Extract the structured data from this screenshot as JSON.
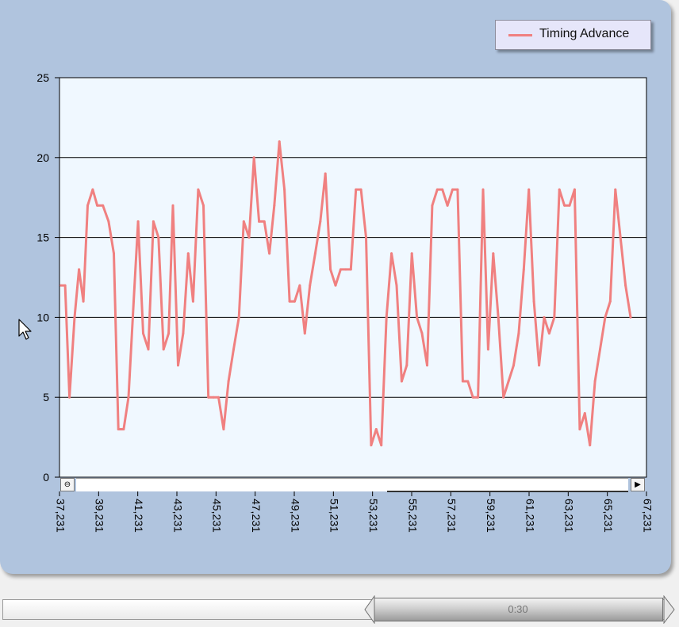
{
  "chart_data": {
    "type": "line",
    "title": "",
    "xlabel": "",
    "ylabel": "",
    "ylim": [
      0,
      25
    ],
    "yticks": [
      "0",
      "5",
      "10",
      "15",
      "20",
      "25"
    ],
    "xticks": [
      "37,231",
      "39,231",
      "41,231",
      "43,231",
      "45,231",
      "47,231",
      "49,231",
      "51,231",
      "53,231",
      "55,231",
      "57,231",
      "59,231",
      "61,231",
      "63,231",
      "65,231",
      "67,231"
    ],
    "grid": true,
    "legend_position": "top-right",
    "series": [
      {
        "name": "Timing Advance",
        "color": "#f08080",
        "points": [
          [
            37.3,
            12
          ],
          [
            37.52,
            12
          ],
          [
            37.74,
            5
          ],
          [
            38.0,
            10
          ],
          [
            38.23,
            13
          ],
          [
            38.45,
            11
          ],
          [
            38.67,
            17
          ],
          [
            38.93,
            18
          ],
          [
            39.16,
            17
          ],
          [
            39.45,
            17
          ],
          [
            39.74,
            16
          ],
          [
            40.01,
            14
          ],
          [
            40.24,
            3
          ],
          [
            40.51,
            3
          ],
          [
            40.76,
            5
          ],
          [
            41.02,
            11
          ],
          [
            41.25,
            16
          ],
          [
            41.51,
            9
          ],
          [
            41.77,
            8
          ],
          [
            42.03,
            16
          ],
          [
            42.29,
            15
          ],
          [
            42.55,
            8
          ],
          [
            42.81,
            9
          ],
          [
            43.03,
            17
          ],
          [
            43.29,
            7
          ],
          [
            43.55,
            9
          ],
          [
            43.81,
            14
          ],
          [
            44.06,
            11
          ],
          [
            44.32,
            18
          ],
          [
            44.59,
            17
          ],
          [
            44.84,
            5
          ],
          [
            45.1,
            5
          ],
          [
            45.36,
            5
          ],
          [
            45.62,
            3
          ],
          [
            45.87,
            6
          ],
          [
            46.13,
            8
          ],
          [
            46.4,
            10
          ],
          [
            46.65,
            16
          ],
          [
            46.92,
            15
          ],
          [
            47.17,
            20
          ],
          [
            47.43,
            16
          ],
          [
            47.7,
            16
          ],
          [
            47.96,
            14
          ],
          [
            48.21,
            17
          ],
          [
            48.47,
            21
          ],
          [
            48.73,
            18
          ],
          [
            48.99,
            11
          ],
          [
            49.25,
            11
          ],
          [
            49.51,
            12
          ],
          [
            49.77,
            9
          ],
          [
            50.03,
            12
          ],
          [
            50.3,
            14
          ],
          [
            50.56,
            16
          ],
          [
            50.82,
            19
          ],
          [
            51.08,
            13
          ],
          [
            51.34,
            12
          ],
          [
            51.6,
            13
          ],
          [
            51.86,
            13
          ],
          [
            52.12,
            13
          ],
          [
            52.38,
            18
          ],
          [
            52.64,
            18
          ],
          [
            52.9,
            15
          ],
          [
            53.16,
            2
          ],
          [
            53.42,
            3
          ],
          [
            53.68,
            2
          ],
          [
            53.94,
            10
          ],
          [
            54.2,
            14
          ],
          [
            54.46,
            12
          ],
          [
            54.72,
            6
          ],
          [
            54.98,
            7
          ],
          [
            55.24,
            14
          ],
          [
            55.5,
            10
          ],
          [
            55.76,
            9
          ],
          [
            56.02,
            7
          ],
          [
            56.28,
            17
          ],
          [
            56.54,
            18
          ],
          [
            56.8,
            18
          ],
          [
            57.06,
            17
          ],
          [
            57.32,
            18
          ],
          [
            57.58,
            18
          ],
          [
            57.84,
            6
          ],
          [
            58.1,
            6
          ],
          [
            58.36,
            5
          ],
          [
            58.62,
            5
          ],
          [
            58.88,
            18
          ],
          [
            59.14,
            8
          ],
          [
            59.4,
            14
          ],
          [
            59.66,
            10
          ],
          [
            59.92,
            5
          ],
          [
            60.18,
            6
          ],
          [
            60.44,
            7
          ],
          [
            60.7,
            9
          ],
          [
            60.96,
            13
          ],
          [
            61.22,
            18
          ],
          [
            61.48,
            11
          ],
          [
            61.74,
            7
          ],
          [
            62.0,
            10
          ],
          [
            62.26,
            9
          ],
          [
            62.52,
            10
          ],
          [
            62.78,
            18
          ],
          [
            63.04,
            17
          ],
          [
            63.3,
            17
          ],
          [
            63.56,
            18
          ],
          [
            63.82,
            3
          ],
          [
            64.08,
            4
          ],
          [
            64.34,
            2
          ],
          [
            64.6,
            6
          ],
          [
            64.86,
            8
          ],
          [
            65.12,
            10
          ],
          [
            65.38,
            11
          ],
          [
            65.64,
            18
          ],
          [
            65.9,
            15
          ],
          [
            66.16,
            12
          ],
          [
            66.42,
            10
          ]
        ]
      }
    ]
  },
  "legend": {
    "label": "Timing Advance"
  },
  "playback": {
    "time": "0:30"
  }
}
